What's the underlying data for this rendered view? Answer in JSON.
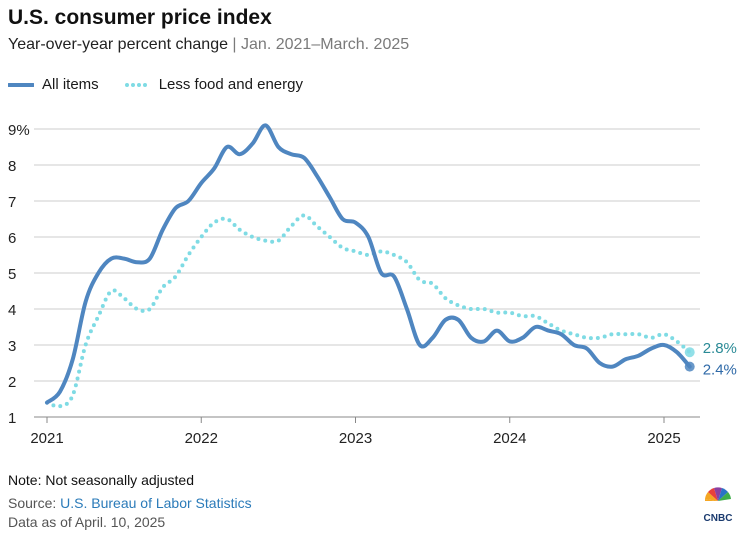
{
  "title": "U.S. consumer price index",
  "subtitle_main": "Year-over-year percent change",
  "subtitle_sep": " | ",
  "subtitle_range": "Jan. 2021–March. 2025",
  "footer": {
    "note": "Note: Not seasonally adjusted",
    "source_prefix": "Source: ",
    "source_link": "U.S. Bureau of Labor Statistics",
    "as_of": "Data as of April. 10, 2025"
  },
  "logo_text": "CNBC",
  "colors": {
    "all_items": "#4f86c0",
    "core": "#7fdbe4",
    "grid": "#cccccc",
    "axis_text": "#222222"
  },
  "chart_data": {
    "type": "line",
    "title": "U.S. consumer price index",
    "xlabel": "",
    "ylabel": "",
    "ylim": [
      1,
      9
    ],
    "xlim": [
      "2021-01",
      "2025-03"
    ],
    "y_ticks": [
      "1",
      "2",
      "3",
      "4",
      "5",
      "6",
      "7",
      "8",
      "9%"
    ],
    "x_ticks": [
      "2021",
      "2022",
      "2023",
      "2024",
      "2025"
    ],
    "grid": true,
    "legend_position": "top-left",
    "x": [
      "2021-01",
      "2021-02",
      "2021-03",
      "2021-04",
      "2021-05",
      "2021-06",
      "2021-07",
      "2021-08",
      "2021-09",
      "2021-10",
      "2021-11",
      "2021-12",
      "2022-01",
      "2022-02",
      "2022-03",
      "2022-04",
      "2022-05",
      "2022-06",
      "2022-07",
      "2022-08",
      "2022-09",
      "2022-10",
      "2022-11",
      "2022-12",
      "2023-01",
      "2023-02",
      "2023-03",
      "2023-04",
      "2023-05",
      "2023-06",
      "2023-07",
      "2023-08",
      "2023-09",
      "2023-10",
      "2023-11",
      "2023-12",
      "2024-01",
      "2024-02",
      "2024-03",
      "2024-04",
      "2024-05",
      "2024-06",
      "2024-07",
      "2024-08",
      "2024-09",
      "2024-10",
      "2024-11",
      "2024-12",
      "2025-01",
      "2025-02",
      "2025-03"
    ],
    "series": [
      {
        "name": "All items",
        "values": [
          1.4,
          1.7,
          2.6,
          4.2,
          5.0,
          5.4,
          5.4,
          5.3,
          5.4,
          6.2,
          6.8,
          7.0,
          7.5,
          7.9,
          8.5,
          8.3,
          8.6,
          9.1,
          8.5,
          8.3,
          8.2,
          7.7,
          7.1,
          6.5,
          6.4,
          6.0,
          5.0,
          4.9,
          4.0,
          3.0,
          3.2,
          3.7,
          3.7,
          3.2,
          3.1,
          3.4,
          3.1,
          3.2,
          3.5,
          3.4,
          3.3,
          3.0,
          2.9,
          2.5,
          2.4,
          2.6,
          2.7,
          2.9,
          3.0,
          2.8,
          2.4
        ],
        "end_label": "2.4%"
      },
      {
        "name": "Less food and energy",
        "values": [
          1.4,
          1.3,
          1.6,
          3.0,
          3.8,
          4.5,
          4.3,
          4.0,
          4.0,
          4.6,
          4.9,
          5.5,
          6.0,
          6.4,
          6.5,
          6.2,
          6.0,
          5.9,
          5.9,
          6.3,
          6.6,
          6.3,
          6.0,
          5.7,
          5.6,
          5.5,
          5.6,
          5.5,
          5.3,
          4.8,
          4.7,
          4.3,
          4.1,
          4.0,
          4.0,
          3.9,
          3.9,
          3.8,
          3.8,
          3.6,
          3.4,
          3.3,
          3.2,
          3.2,
          3.3,
          3.3,
          3.3,
          3.2,
          3.3,
          3.1,
          2.8
        ],
        "end_label": "2.8%"
      }
    ]
  }
}
